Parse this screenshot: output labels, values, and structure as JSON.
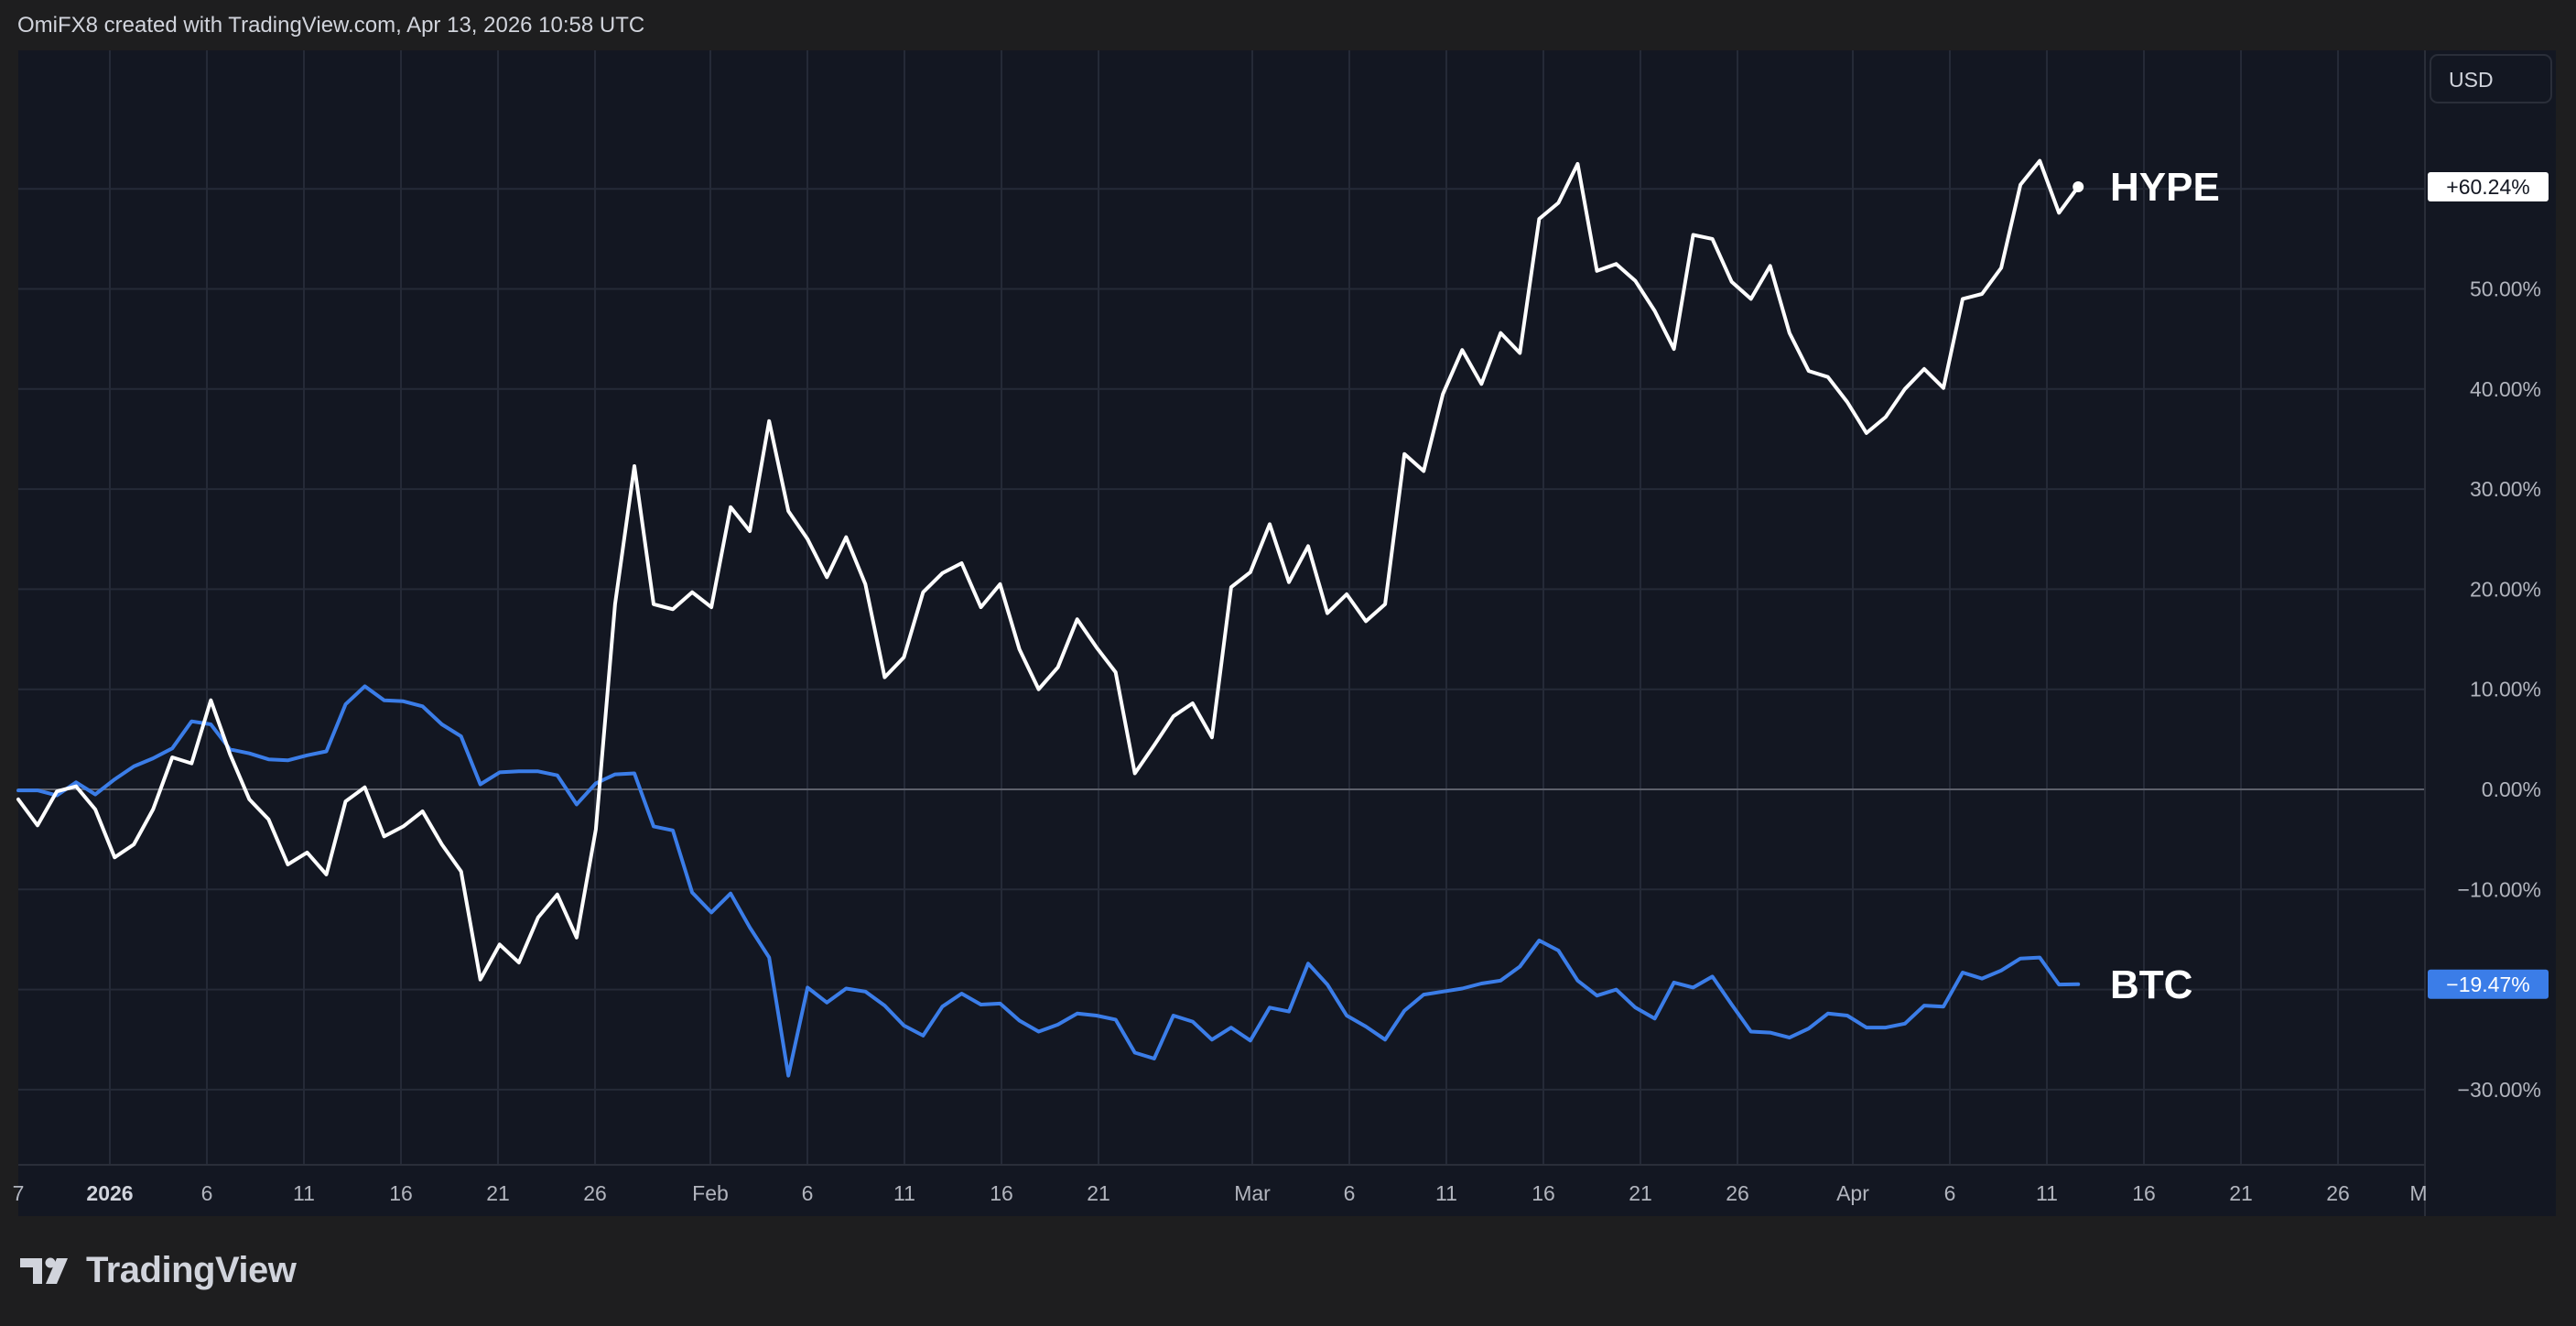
{
  "header": {
    "text": "OmiFX8 created with TradingView.com, Apr 13, 2026 10:58 UTC"
  },
  "footer": {
    "logo_text": "TradingView"
  },
  "currency_button": {
    "label": "USD"
  },
  "colors": {
    "background": "#131722",
    "hype": "#ffffff",
    "btc": "#3b7de8",
    "grid": "#252a37",
    "axis_text": "#b2b5be"
  },
  "chart_data": {
    "type": "line",
    "ylim": [
      -37,
      70
    ],
    "y_ticks": [
      {
        "value": 50,
        "label": "50.00%"
      },
      {
        "value": 40,
        "label": "40.00%"
      },
      {
        "value": 30,
        "label": "30.00%"
      },
      {
        "value": 20,
        "label": "20.00%"
      },
      {
        "value": 10,
        "label": "10.00%"
      },
      {
        "value": 0,
        "label": "0.00%"
      },
      {
        "value": -10,
        "label": "−10.00%"
      },
      {
        "value": -20,
        "label": "−20.00%"
      },
      {
        "value": -30,
        "label": "−30.00%"
      }
    ],
    "x_ticks": [
      {
        "label": "7",
        "bold": false
      },
      {
        "label": "2026",
        "bold": true
      },
      {
        "label": "6",
        "bold": false
      },
      {
        "label": "11",
        "bold": false
      },
      {
        "label": "16",
        "bold": false
      },
      {
        "label": "21",
        "bold": false
      },
      {
        "label": "26",
        "bold": false
      },
      {
        "label": "Feb",
        "bold": false
      },
      {
        "label": "6",
        "bold": false
      },
      {
        "label": "11",
        "bold": false
      },
      {
        "label": "16",
        "bold": false
      },
      {
        "label": "21",
        "bold": false
      },
      {
        "label": "Mar",
        "bold": false
      },
      {
        "label": "6",
        "bold": false
      },
      {
        "label": "11",
        "bold": false
      },
      {
        "label": "16",
        "bold": false
      },
      {
        "label": "21",
        "bold": false
      },
      {
        "label": "26",
        "bold": false
      },
      {
        "label": "Apr",
        "bold": false
      },
      {
        "label": "6",
        "bold": false
      },
      {
        "label": "11",
        "bold": false
      },
      {
        "label": "16",
        "bold": false
      },
      {
        "label": "21",
        "bold": false
      },
      {
        "label": "26",
        "bold": false
      },
      {
        "label": "M",
        "bold": false
      }
    ],
    "series": [
      {
        "name": "HYPE",
        "last_label": "+60.24%",
        "values": [
          -1,
          -3.6,
          -0.2,
          0.3,
          -2,
          -6.8,
          -5.5,
          -2,
          3.2,
          2.6,
          8.9,
          3.5,
          -1,
          -3,
          -7.5,
          -6.3,
          -8.5,
          -1.2,
          0.2,
          -4.7,
          -3.7,
          -2.2,
          -5.5,
          -8.2,
          -19,
          -15.5,
          -17.3,
          -12.8,
          -10.5,
          -14.8,
          -4,
          18.5,
          32.3,
          18.5,
          18,
          19.7,
          18.2,
          28.2,
          25.8,
          36.8,
          27.8,
          25,
          21.2,
          25.2,
          20.5,
          11.2,
          13.2,
          19.7,
          21.6,
          22.6,
          18.2,
          20.5,
          14,
          10,
          12.2,
          17,
          14.2,
          11.7,
          1.6,
          4.4,
          7.3,
          8.6,
          5.2,
          20.2,
          21.7,
          26.5,
          20.7,
          24.3,
          17.6,
          19.5,
          16.8,
          18.5,
          33.5,
          31.8,
          39.5,
          43.9,
          40.5,
          45.6,
          43.6,
          57,
          58.6,
          62.5,
          51.8,
          52.5,
          50.8,
          47.8,
          44,
          55.4,
          55,
          50.7,
          49,
          52.3,
          45.6,
          41.8,
          41.2,
          38.7,
          35.6,
          37.2,
          40,
          42,
          40.1,
          49,
          49.5,
          52.1,
          60.4,
          62.8,
          57.6,
          60.2
        ]
      },
      {
        "name": "BTC",
        "last_label": "−19.47%",
        "values": [
          -0.1,
          -0.1,
          -0.6,
          0.7,
          -0.5,
          1,
          2.3,
          3.1,
          4.1,
          6.8,
          6.5,
          4,
          3.6,
          3,
          2.9,
          3.4,
          3.8,
          8.5,
          10.3,
          8.9,
          8.8,
          8.3,
          6.5,
          5.3,
          0.5,
          1.7,
          1.8,
          1.8,
          1.4,
          -1.5,
          0.6,
          1.5,
          1.6,
          -3.7,
          -4.1,
          -10.3,
          -12.3,
          -10.4,
          -13.8,
          -16.8,
          -28.6,
          -19.8,
          -21.3,
          -19.9,
          -20.2,
          -21.6,
          -23.6,
          -24.6,
          -21.7,
          -20.4,
          -21.5,
          -21.4,
          -23.1,
          -24.2,
          -23.5,
          -22.4,
          -22.6,
          -23,
          -26.3,
          -26.9,
          -22.6,
          -23.2,
          -25,
          -23.8,
          -25.1,
          -21.8,
          -22.2,
          -17.4,
          -19.5,
          -22.6,
          -23.7,
          -25,
          -22.1,
          -20.5,
          -20.2,
          -19.9,
          -19.4,
          -19.1,
          -17.7,
          -15.1,
          -16.1,
          -19.1,
          -20.6,
          -20,
          -21.8,
          -22.9,
          -19.3,
          -19.8,
          -18.7,
          -21.5,
          -24.2,
          -24.3,
          -24.8,
          -23.9,
          -22.4,
          -22.6,
          -23.8,
          -23.8,
          -23.4,
          -21.6,
          -21.7,
          -18.3,
          -18.9,
          -18.1,
          -16.9,
          -16.8,
          -19.5,
          -19.47
        ]
      }
    ]
  }
}
